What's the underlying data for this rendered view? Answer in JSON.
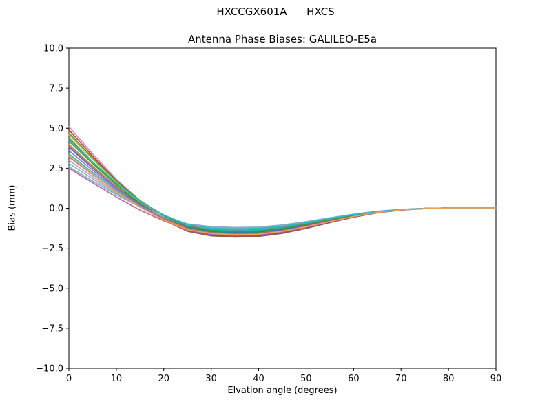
{
  "figure": {
    "suptitle": "HXCCGX601A      HXCS",
    "title": "Antenna Phase Biases: GALILEO-E5a",
    "xlabel": "Elvation angle (degrees)",
    "ylabel": "Bias (mm)"
  },
  "chart_data": {
    "type": "line",
    "suptitle": "HXCCGX601A      HXCS",
    "title": "Antenna Phase Biases: GALILEO-E5a",
    "xlabel": "Elvation angle (degrees)",
    "ylabel": "Bias (mm)",
    "xlim": [
      0,
      90
    ],
    "ylim": [
      -10,
      10
    ],
    "xticks": [
      0,
      10,
      20,
      30,
      40,
      50,
      60,
      70,
      80,
      90
    ],
    "yticks": [
      -10,
      -7.5,
      -5,
      -2.5,
      0,
      2.5,
      5,
      7.5,
      10
    ],
    "ytick_labels": [
      "−10.0",
      "−7.5",
      "−5.0",
      "−2.5",
      "0.0",
      "2.5",
      "5.0",
      "7.5",
      "10.0"
    ],
    "grid": false,
    "legend": false,
    "x": [
      0,
      5,
      10,
      15,
      20,
      25,
      30,
      35,
      40,
      45,
      50,
      55,
      60,
      65,
      70,
      75,
      80,
      85,
      90
    ],
    "series": [
      {
        "name": "curve-01",
        "color": "#e377c2",
        "values": [
          5.1,
          3.4,
          1.82,
          0.46,
          -0.6,
          -1.34,
          -1.63,
          -1.7,
          -1.67,
          -1.48,
          -1.19,
          -0.85,
          -0.53,
          -0.27,
          -0.1,
          -0.02,
          0.02,
          0.02,
          0.02
        ]
      },
      {
        "name": "curve-02",
        "color": "#d62728",
        "values": [
          4.9,
          3.26,
          1.72,
          0.39,
          -0.65,
          -1.39,
          -1.68,
          -1.75,
          -1.72,
          -1.52,
          -1.23,
          -0.88,
          -0.54,
          -0.28,
          -0.11,
          -0.02,
          0.02,
          0.02,
          0.02
        ]
      },
      {
        "name": "curve-03",
        "color": "#bcbd22",
        "values": [
          4.6,
          3.06,
          1.61,
          0.36,
          -0.61,
          -1.31,
          -1.58,
          -1.65,
          -1.62,
          -1.44,
          -1.16,
          -0.83,
          -0.51,
          -0.26,
          -0.1,
          -0.02,
          0.02,
          0.02,
          0.02
        ]
      },
      {
        "name": "curve-04",
        "color": "#8c564b",
        "values": [
          4.4,
          2.9,
          1.49,
          0.25,
          -0.73,
          -1.44,
          -1.73,
          -1.8,
          -1.76,
          -1.57,
          -1.26,
          -0.9,
          -0.56,
          -0.29,
          -0.11,
          -0.02,
          0.02,
          0.02,
          0.02
        ]
      },
      {
        "name": "curve-05",
        "color": "#2ca02c",
        "values": [
          4.2,
          2.79,
          1.46,
          0.31,
          -0.59,
          -1.23,
          -1.49,
          -1.55,
          -1.52,
          -1.35,
          -1.09,
          -0.78,
          -0.48,
          -0.25,
          -0.09,
          -0.02,
          0.02,
          0.02,
          0.02
        ]
      },
      {
        "name": "curve-06",
        "color": "#ff7f0e",
        "values": [
          4.0,
          2.64,
          1.36,
          0.24,
          -0.64,
          -1.28,
          -1.54,
          -1.6,
          -1.57,
          -1.39,
          -1.12,
          -0.8,
          -0.5,
          -0.26,
          -0.1,
          -0.02,
          0.02,
          0.02,
          0.02
        ]
      },
      {
        "name": "curve-07",
        "color": "#1f77b4",
        "values": [
          3.8,
          2.51,
          1.3,
          0.24,
          -0.6,
          -1.2,
          -1.44,
          -1.5,
          -1.47,
          -1.31,
          -1.05,
          -0.75,
          -0.47,
          -0.24,
          -0.09,
          -0.02,
          0.02,
          0.02,
          0.02
        ]
      },
      {
        "name": "curve-08",
        "color": "#9467bd",
        "values": [
          3.6,
          2.38,
          1.22,
          0.21,
          -0.58,
          -1.16,
          -1.39,
          -1.45,
          -1.42,
          -1.26,
          -1.02,
          -0.73,
          -0.45,
          -0.23,
          -0.09,
          -0.01,
          0.01,
          0.01,
          0.01
        ]
      },
      {
        "name": "curve-09",
        "color": "#17becf",
        "values": [
          3.4,
          2.24,
          1.15,
          0.19,
          -0.57,
          -1.12,
          -1.34,
          -1.4,
          -1.37,
          -1.22,
          -0.98,
          -0.7,
          -0.43,
          -0.22,
          -0.08,
          -0.01,
          0.01,
          0.01,
          0.01
        ]
      },
      {
        "name": "curve-10",
        "color": "#7f7f7f",
        "values": [
          3.2,
          2.11,
          1.07,
          0.16,
          -0.56,
          -1.08,
          -1.3,
          -1.35,
          -1.32,
          -1.17,
          -0.95,
          -0.68,
          -0.42,
          -0.22,
          -0.08,
          -0.01,
          0.01,
          0.01,
          0.01
        ]
      },
      {
        "name": "curve-11",
        "color": "#d48ac2",
        "values": [
          3.0,
          1.97,
          1.0,
          0.14,
          -0.55,
          -1.05,
          -1.25,
          -1.3,
          -1.27,
          -1.13,
          -0.91,
          -0.65,
          -0.4,
          -0.21,
          -0.08,
          -0.01,
          0.01,
          0.01,
          0.01
        ]
      },
      {
        "name": "curve-12",
        "color": "#66c2a5",
        "values": [
          2.8,
          1.84,
          0.92,
          0.11,
          -0.53,
          -1.01,
          -1.2,
          -1.25,
          -1.23,
          -1.09,
          -0.88,
          -0.63,
          -0.39,
          -0.2,
          -0.08,
          -0.01,
          0.01,
          0.01,
          0.01
        ]
      },
      {
        "name": "curve-13",
        "color": "#8da0cb",
        "values": [
          2.6,
          1.7,
          0.84,
          0.08,
          -0.52,
          -0.97,
          -1.15,
          -1.2,
          -1.18,
          -1.04,
          -0.84,
          -0.6,
          -0.37,
          -0.19,
          -0.07,
          -0.01,
          0.01,
          0.01,
          0.01
        ]
      },
      {
        "name": "curve-14",
        "color": "#b05fa3",
        "values": [
          2.5,
          1.59,
          0.7,
          -0.12,
          -0.79,
          -1.31,
          -1.54,
          -1.6,
          -1.57,
          -1.39,
          -1.12,
          -0.8,
          -0.5,
          -0.26,
          -0.1,
          -0.02,
          0.02,
          0.02,
          0.02
        ]
      },
      {
        "name": "curve-15",
        "color": "#2ca02c",
        "values": [
          4.7,
          3.15,
          1.71,
          0.48,
          -0.47,
          -1.14,
          -1.39,
          -1.45,
          -1.42,
          -1.26,
          -1.02,
          -0.73,
          -0.45,
          -0.23,
          -0.09,
          -0.01,
          0.01,
          0.01,
          0.01
        ]
      },
      {
        "name": "curve-16",
        "color": "#9467bd",
        "values": [
          3.9,
          2.56,
          1.29,
          0.17,
          -0.72,
          -1.37,
          -1.63,
          -1.7,
          -1.67,
          -1.48,
          -1.19,
          -0.85,
          -0.53,
          -0.27,
          -0.1,
          -0.02,
          0.02,
          0.02,
          0.02
        ]
      },
      {
        "name": "curve-17",
        "color": "#17becf",
        "values": [
          4.3,
          2.88,
          1.57,
          0.45,
          -0.42,
          -1.02,
          -1.25,
          -1.3,
          -1.27,
          -1.13,
          -0.91,
          -0.65,
          -0.4,
          -0.21,
          -0.08,
          -0.01,
          0.01,
          0.01,
          0.01
        ]
      },
      {
        "name": "curve-18",
        "color": "#ff9e4a",
        "values": [
          3.3,
          2.15,
          1.04,
          0.05,
          -0.74,
          -1.34,
          -1.58,
          -1.65,
          -1.62,
          -1.44,
          -1.16,
          -0.83,
          -0.51,
          -0.26,
          -0.1,
          -0.02,
          0.02,
          0.02,
          0.02
        ]
      }
    ]
  }
}
